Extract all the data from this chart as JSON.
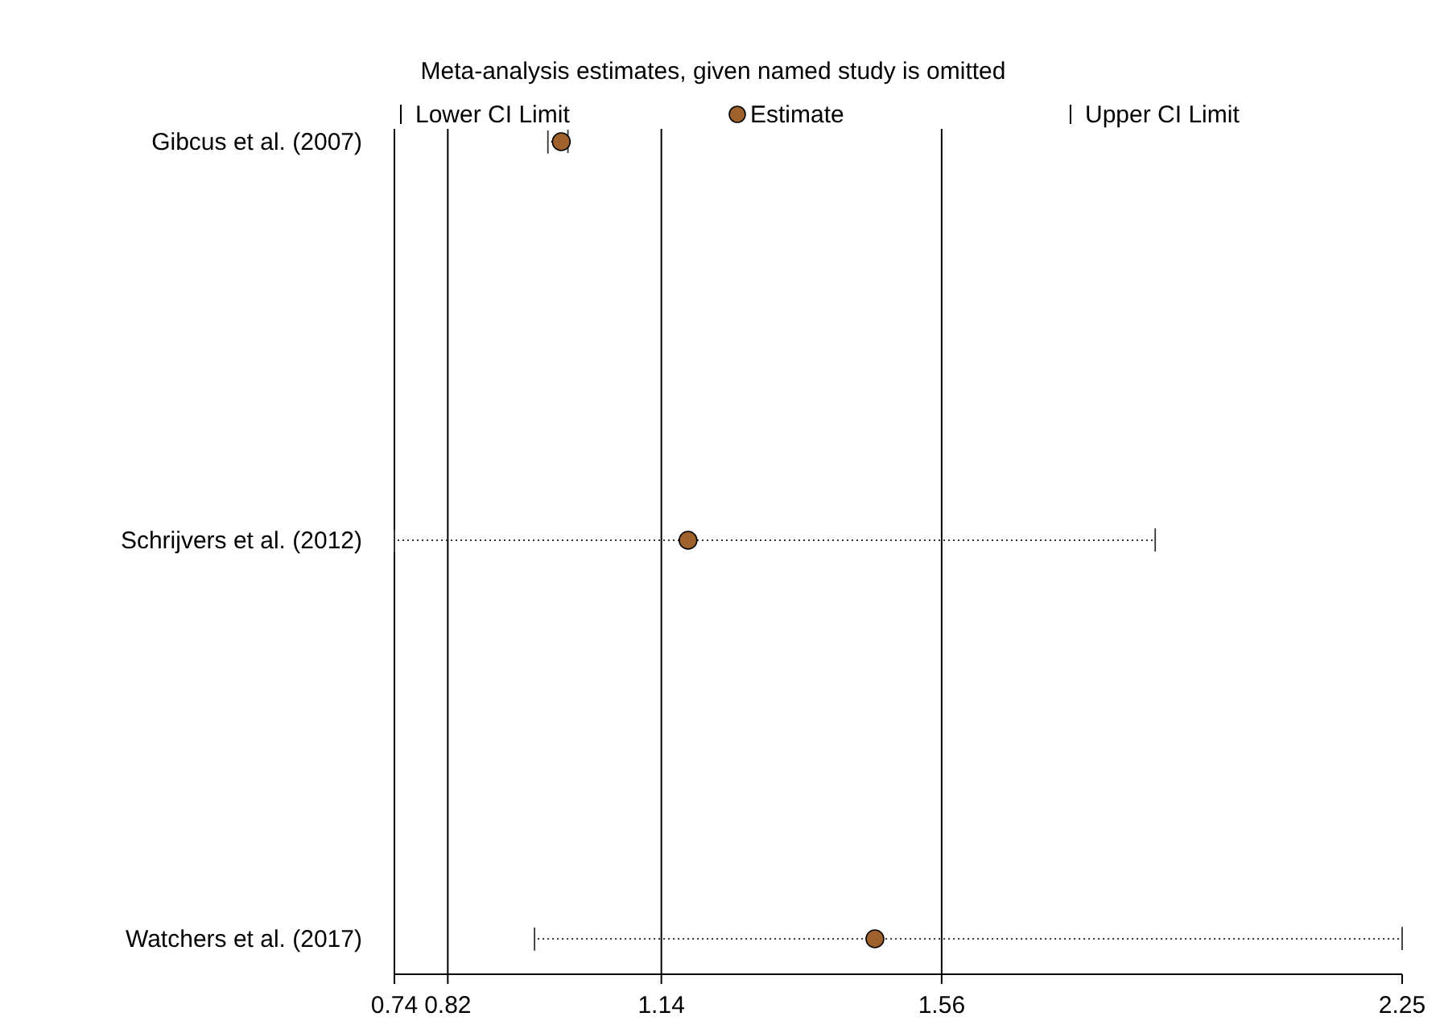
{
  "chart_data": {
    "type": "scatter",
    "orientation": "horizontal",
    "title": "Meta-analysis estimates, given named study is omitted",
    "categories": [
      "Gibcus et al. (2007)",
      "Schrijvers et al. (2012)",
      "Watchers et al. (2017)"
    ],
    "series": [
      {
        "name": "Estimate",
        "color": "#a0622d",
        "values": [
          0.99,
          1.18,
          1.46
        ],
        "errors": [
          [
            0.97,
            1.0
          ],
          [
            0.74,
            1.88
          ],
          [
            0.95,
            2.25
          ]
        ]
      }
    ],
    "annotations": [
      "Lower CI Limit",
      "Upper CI Limit"
    ],
    "marker": "circle",
    "line_style": "dotted",
    "xlim": [
      0.74,
      2.25
    ],
    "xticks": [
      0.74,
      0.82,
      1.14,
      1.56,
      2.25
    ],
    "ref_lines": [
      {
        "axis": "x",
        "value": 0.82,
        "color": "#000000"
      },
      {
        "axis": "x",
        "value": 1.14,
        "color": "#000000"
      },
      {
        "axis": "x",
        "value": 1.56,
        "color": "#000000"
      }
    ],
    "legend": "top"
  }
}
